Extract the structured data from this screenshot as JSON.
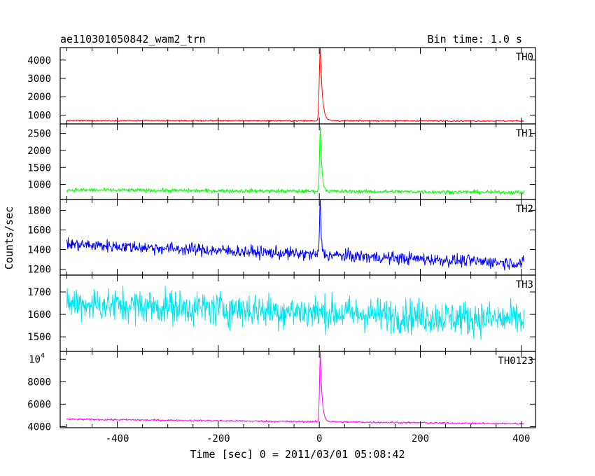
{
  "chart_data": {
    "type": "line",
    "title_left": "ae110301050842_wam2_trn",
    "title_right": "Bin time: 1.0 s",
    "xlabel": "Time [sec] 0 = 2011/03/01 05:08:42",
    "ylabel": "Counts/sec",
    "xlim": [
      -513,
      428
    ],
    "x_ticks": [
      -400,
      -200,
      0,
      200,
      400
    ],
    "grid": false,
    "panels": [
      {
        "name": "TH0",
        "color": "#ff0000",
        "ylim": [
          520,
          4680
        ],
        "y_ticks": [
          {
            "v": 1000,
            "label": "1000"
          },
          {
            "v": 2000,
            "label": "2000"
          },
          {
            "v": 3000,
            "label": "3000"
          },
          {
            "v": 4000,
            "label": "4000"
          }
        ],
        "series": {
          "x_start": -500,
          "x_end": 405,
          "base_start": 700,
          "base_end": 680,
          "noise": 25,
          "peak_x": 2,
          "peak": 4700,
          "rise_s": 2,
          "decay_s": 4
        }
      },
      {
        "name": "TH1",
        "color": "#00ff00",
        "ylim": [
          560,
          2780
        ],
        "y_ticks": [
          {
            "v": 1000,
            "label": "1000"
          },
          {
            "v": 1500,
            "label": "1500"
          },
          {
            "v": 2000,
            "label": "2000"
          },
          {
            "v": 2500,
            "label": "2500"
          }
        ],
        "series": {
          "x_start": -500,
          "x_end": 405,
          "base_start": 840,
          "base_end": 770,
          "noise": 40,
          "peak_x": 2,
          "peak": 2750,
          "rise_s": 1.5,
          "decay_s": 3
        }
      },
      {
        "name": "TH2",
        "color": "#0000ff",
        "ylim": [
          1140,
          1910
        ],
        "y_ticks": [
          {
            "v": 1200,
            "label": "1200"
          },
          {
            "v": 1400,
            "label": "1400"
          },
          {
            "v": 1600,
            "label": "1600"
          },
          {
            "v": 1800,
            "label": "1800"
          }
        ],
        "series": {
          "x_start": -500,
          "x_end": 405,
          "base_start": 1455,
          "base_end": 1260,
          "noise": 45,
          "peak_x": 2,
          "peak": 1900,
          "rise_s": 1.5,
          "decay_s": 2
        }
      },
      {
        "name": "TH3",
        "color": "#00e5ee",
        "ylim": [
          1435,
          1775
        ],
        "y_ticks": [
          {
            "v": 1500,
            "label": "1500"
          },
          {
            "v": 1600,
            "label": "1600"
          },
          {
            "v": 1700,
            "label": "1700"
          }
        ],
        "series": {
          "x_start": -500,
          "x_end": 405,
          "base_start": 1650,
          "base_end": 1575,
          "noise": 55,
          "peak_x": 2,
          "peak": 0,
          "rise_s": 1,
          "decay_s": 1
        }
      },
      {
        "name": "TH0123",
        "color": "#ff00ff",
        "ylim": [
          3900,
          10700
        ],
        "y_ticks": [
          {
            "v": 4000,
            "label": "4000"
          },
          {
            "v": 6000,
            "label": "6000"
          },
          {
            "v": 8000,
            "label": "8000"
          },
          {
            "v": 10000,
            "label": "10",
            "exp": "4"
          }
        ],
        "series": {
          "x_start": -500,
          "x_end": 405,
          "base_start": 4650,
          "base_end": 4250,
          "noise": 55,
          "peak_x": 2,
          "peak": 10600,
          "rise_s": 1.5,
          "decay_s": 3.5
        }
      }
    ]
  }
}
